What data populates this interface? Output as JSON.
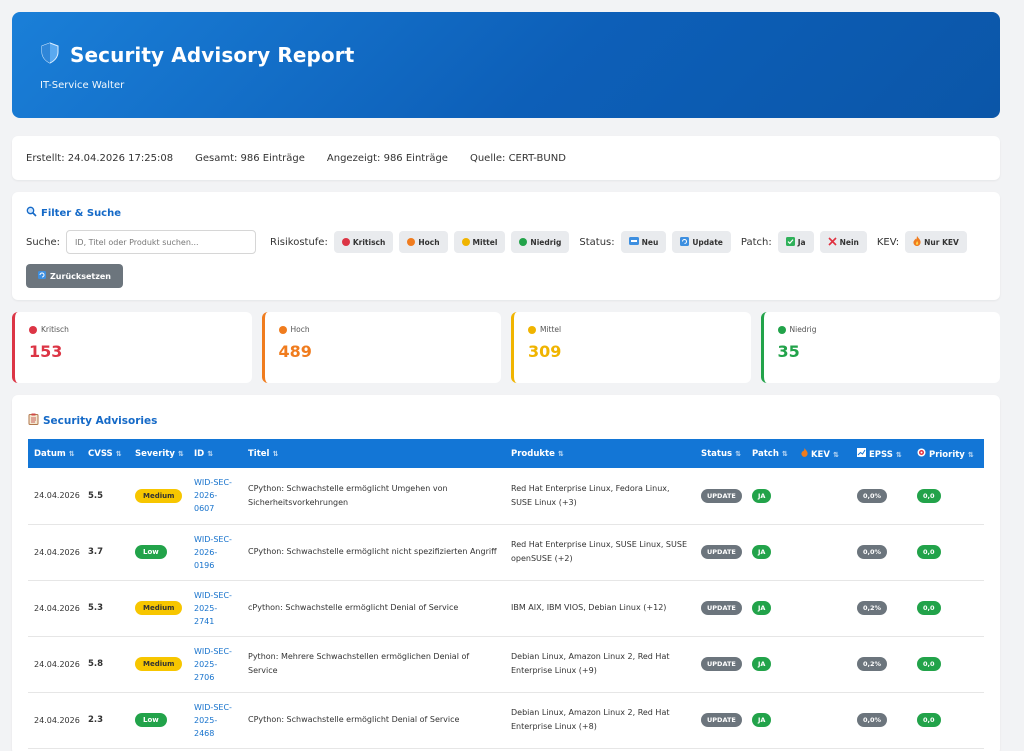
{
  "header": {
    "title": "Security Advisory Report",
    "subtitle": "IT-Service Walter"
  },
  "info": {
    "created": "Erstellt: 24.04.2026 17:25:08",
    "total": "Gesamt: 986 Einträge",
    "shown": "Angezeigt: 986 Einträge",
    "source": "Quelle: CERT-BUND"
  },
  "filter": {
    "title": "Filter & Suche",
    "search_label": "Suche:",
    "search_placeholder": "ID, Titel oder Produkt suchen...",
    "risk_label": "Risikostufe:",
    "risk": [
      "Kritisch",
      "Hoch",
      "Mittel",
      "Niedrig"
    ],
    "status_label": "Status:",
    "status": [
      "Neu",
      "Update"
    ],
    "patch_label": "Patch:",
    "patch": [
      "Ja",
      "Nein"
    ],
    "kev_label": "KEV:",
    "kev": "Nur KEV",
    "reset": "Zurücksetzen"
  },
  "stats": [
    {
      "label": "Kritisch",
      "value": "153",
      "color": "#dc3545"
    },
    {
      "label": "Hoch",
      "value": "489",
      "color": "#f07c1e"
    },
    {
      "label": "Mittel",
      "value": "309",
      "color": "#f0b400"
    },
    {
      "label": "Niedrig",
      "value": "35",
      "color": "#22a34a"
    }
  ],
  "advisories": {
    "title": "Security Advisories",
    "columns": [
      "Datum",
      "CVSS",
      "Severity",
      "ID",
      "Titel",
      "Produkte",
      "Status",
      "Patch",
      "KEV",
      "EPSS",
      "Priority"
    ],
    "rows": [
      {
        "date": "24.04.2026",
        "cvss": "5.5",
        "severity": "Medium",
        "id_lines": [
          "WID-SEC-",
          "2026-",
          "0607"
        ],
        "title": "CPython: Schwachstelle ermöglicht Umgehen von Sicherheitsvorkehrungen",
        "products": "Red Hat Enterprise Linux, Fedora Linux, SUSE Linux (+3)",
        "status": "UPDATE",
        "patch": "JA",
        "epss": "0,0%",
        "priority": "0,0"
      },
      {
        "date": "24.04.2026",
        "cvss": "3.7",
        "severity": "Low",
        "id_lines": [
          "WID-SEC-",
          "2026-",
          "0196"
        ],
        "title": "CPython: Schwachstelle ermöglicht nicht spezifizierten Angriff",
        "products": "Red Hat Enterprise Linux, SUSE Linux, SUSE openSUSE (+2)",
        "status": "UPDATE",
        "patch": "JA",
        "epss": "0,0%",
        "priority": "0,0"
      },
      {
        "date": "24.04.2026",
        "cvss": "5.3",
        "severity": "Medium",
        "id_lines": [
          "WID-SEC-",
          "2025-",
          "2741"
        ],
        "title": "cPython: Schwachstelle ermöglicht Denial of Service",
        "products": "IBM AIX, IBM VIOS, Debian Linux (+12)",
        "status": "UPDATE",
        "patch": "JA",
        "epss": "0,2%",
        "priority": "0,0"
      },
      {
        "date": "24.04.2026",
        "cvss": "5.8",
        "severity": "Medium",
        "id_lines": [
          "WID-SEC-",
          "2025-",
          "2706"
        ],
        "title": "Python: Mehrere Schwachstellen ermöglichen Denial of Service",
        "products": "Debian Linux, Amazon Linux 2, Red Hat Enterprise Linux (+9)",
        "status": "UPDATE",
        "patch": "JA",
        "epss": "0,2%",
        "priority": "0,0"
      },
      {
        "date": "24.04.2026",
        "cvss": "2.3",
        "severity": "Low",
        "id_lines": [
          "WID-SEC-",
          "2025-",
          "2468"
        ],
        "title": "CPython: Schwachstelle ermöglicht Denial of Service",
        "products": "Debian Linux, Amazon Linux 2, Red Hat Enterprise Linux (+8)",
        "status": "UPDATE",
        "patch": "JA",
        "epss": "0,0%",
        "priority": "0,0"
      }
    ]
  }
}
